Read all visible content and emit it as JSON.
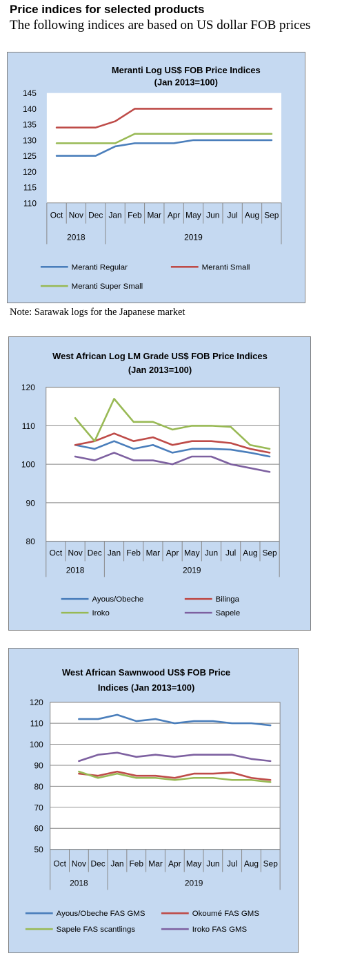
{
  "page": {
    "heading": "Price indices for selected products",
    "subheading": "The following indices are based on US dollar FOB prices",
    "note": "Note: Sarawak logs for the Japanese market"
  },
  "chart_data": [
    {
      "type": "line",
      "title": [
        "Meranti Log US$ FOB Price Indices",
        "(Jan 2013=100)"
      ],
      "categories": [
        "Oct",
        "Nov",
        "Dec",
        "Jan",
        "Feb",
        "Mar",
        "Apr",
        "May",
        "Jun",
        "Jul",
        "Aug",
        "Sep"
      ],
      "year_groups": [
        {
          "label": "2018",
          "span": [
            0,
            2
          ]
        },
        {
          "label": "2019",
          "span": [
            3,
            11
          ]
        }
      ],
      "ylim": [
        110,
        145
      ],
      "yticks": [
        110,
        115,
        120,
        125,
        130,
        135,
        140,
        145
      ],
      "grid": false,
      "legend": "bottom",
      "series": [
        {
          "name": "Meranti Regular",
          "color": "#4a7ebb",
          "values": [
            125,
            125,
            125,
            128,
            129,
            129,
            129,
            130,
            130,
            130,
            130,
            130
          ]
        },
        {
          "name": "Meranti Small",
          "color": "#be4b48",
          "values": [
            134,
            134,
            134,
            136,
            140,
            140,
            140,
            140,
            140,
            140,
            140,
            140
          ]
        },
        {
          "name": "Meranti Super Small",
          "color": "#98b954",
          "values": [
            129,
            129,
            129,
            129,
            132,
            132,
            132,
            132,
            132,
            132,
            132,
            132
          ]
        }
      ]
    },
    {
      "type": "line",
      "title": [
        "West African Log LM Grade US$ FOB Price Indices",
        "(Jan 2013=100)"
      ],
      "categories": [
        "Oct",
        "Nov",
        "Dec",
        "Jan",
        "Feb",
        "Mar",
        "Apr",
        "May",
        "Jun",
        "Jul",
        "Aug",
        "Sep"
      ],
      "year_groups": [
        {
          "label": "2018",
          "span": [
            0,
            2
          ]
        },
        {
          "label": "2019",
          "span": [
            3,
            11
          ]
        }
      ],
      "ylim": [
        80,
        120
      ],
      "yticks": [
        80,
        90,
        100,
        110,
        120
      ],
      "grid": true,
      "legend": "bottom",
      "series": [
        {
          "name": "Ayous/Obeche",
          "color": "#4a7ebb",
          "values": [
            null,
            105,
            104,
            106,
            104,
            105,
            103,
            104,
            104,
            103.8,
            103,
            102
          ]
        },
        {
          "name": "Bilinga",
          "color": "#be4b48",
          "values": [
            null,
            105,
            106,
            108,
            106,
            107,
            105,
            106,
            106,
            105.5,
            104,
            103
          ]
        },
        {
          "name": "Iroko",
          "color": "#98b954",
          "values": [
            null,
            112,
            106,
            117,
            111,
            111,
            109,
            110,
            110,
            109.7,
            105,
            104
          ]
        },
        {
          "name": "Sapele",
          "color": "#7d60a0",
          "values": [
            null,
            102,
            101,
            103,
            101,
            101,
            100,
            102,
            102,
            100,
            99,
            98
          ]
        }
      ]
    },
    {
      "type": "line",
      "title": [
        "West African Sawnwood US$ FOB Price",
        "Indices (Jan 2013=100)"
      ],
      "categories": [
        "Oct",
        "Nov",
        "Dec",
        "Jan",
        "Feb",
        "Mar",
        "Apr",
        "May",
        "Jun",
        "Jul",
        "Aug",
        "Sep"
      ],
      "year_groups": [
        {
          "label": "2018",
          "span": [
            0,
            2
          ]
        },
        {
          "label": "2019",
          "span": [
            3,
            11
          ]
        }
      ],
      "ylim": [
        50,
        120
      ],
      "yticks": [
        50,
        60,
        70,
        80,
        90,
        100,
        110,
        120
      ],
      "grid": true,
      "legend": "bottom",
      "series": [
        {
          "name": "Ayous/Obeche FAS GMS",
          "color": "#4a7ebb",
          "values": [
            null,
            112,
            112,
            114,
            111,
            112,
            110,
            111,
            111,
            110,
            110,
            109
          ]
        },
        {
          "name": "Okoumé FAS GMS",
          "color": "#be4b48",
          "values": [
            null,
            86,
            85,
            87,
            85,
            85,
            84,
            86,
            86,
            86.5,
            84,
            83
          ]
        },
        {
          "name": "Sapele FAS scantlings",
          "color": "#98b954",
          "values": [
            null,
            87,
            84,
            86,
            84,
            84,
            83,
            84,
            84,
            83,
            83,
            82
          ]
        },
        {
          "name": "Iroko FAS GMS",
          "color": "#7d60a0",
          "values": [
            null,
            92,
            95,
            96,
            94,
            95,
            94,
            95,
            95,
            95,
            93,
            92
          ]
        }
      ]
    }
  ]
}
